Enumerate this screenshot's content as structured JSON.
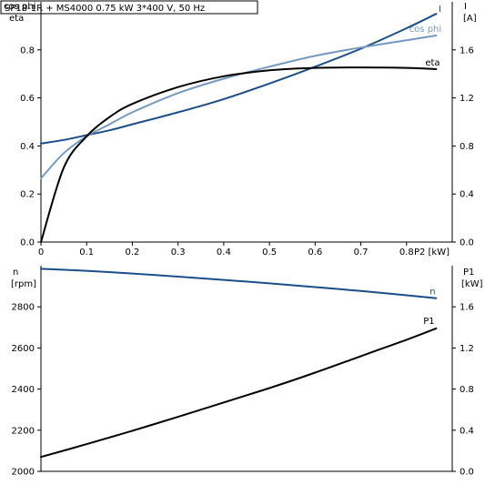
{
  "header": {
    "text": "SP18-1R + MS4000   0.75 kW   3*400 V, 50 Hz"
  },
  "colors": {
    "I": "#1a4f8a",
    "cosphi": "#7699c4",
    "eta": "#000000",
    "n": "#1a4f8a",
    "P1": "#000000",
    "axis": "#000000"
  },
  "chart_data": [
    {
      "type": "line",
      "x": [
        0,
        0.05,
        0.1,
        0.15,
        0.2,
        0.3,
        0.4,
        0.5,
        0.6,
        0.7,
        0.8,
        0.865
      ],
      "xlabel": "P2 [kW]",
      "xlim": [
        0,
        0.9
      ],
      "x_ticks": [
        "0",
        "0.1",
        "0.2",
        "0.3",
        "0.4",
        "0.5",
        "0.6",
        "0.7",
        "0.8"
      ],
      "x_tick_values": [
        0,
        0.1,
        0.2,
        0.3,
        0.4,
        0.5,
        0.6,
        0.7,
        0.8
      ],
      "y_left": {
        "label_lines": [
          "cos phi",
          "eta"
        ],
        "lim": [
          0,
          1
        ],
        "ticks": [
          "0.0",
          "0.2",
          "0.4",
          "0.6",
          "0.8"
        ],
        "tick_values": [
          0,
          0.2,
          0.4,
          0.6,
          0.8
        ]
      },
      "y_right": {
        "label_lines": [
          "I",
          "[A]"
        ],
        "lim": [
          0,
          2.0
        ],
        "ticks": [
          "0.0",
          "0.4",
          "0.8",
          "1.2",
          "1.6"
        ],
        "tick_values": [
          0,
          0.4,
          0.8,
          1.2,
          1.6
        ]
      },
      "series": [
        {
          "name": "I",
          "axis": "right",
          "values": [
            0.82,
            0.85,
            0.89,
            0.93,
            0.98,
            1.08,
            1.19,
            1.32,
            1.46,
            1.61,
            1.78,
            1.9
          ]
        },
        {
          "name": "cos phi",
          "axis": "left",
          "values": [
            0.265,
            0.37,
            0.44,
            0.49,
            0.54,
            0.62,
            0.68,
            0.73,
            0.775,
            0.81,
            0.84,
            0.86
          ]
        },
        {
          "name": "eta",
          "axis": "left",
          "values": [
            0,
            0.31,
            0.44,
            0.52,
            0.575,
            0.645,
            0.69,
            0.715,
            0.725,
            0.727,
            0.725,
            0.72
          ]
        }
      ]
    },
    {
      "type": "line",
      "x": [
        0,
        0.1,
        0.2,
        0.3,
        0.4,
        0.5,
        0.6,
        0.7,
        0.8,
        0.865
      ],
      "xlim": [
        0,
        0.9
      ],
      "y_left": {
        "label_lines": [
          "n",
          "[rpm]"
        ],
        "lim": [
          2000,
          3000
        ],
        "ticks": [
          "2000",
          "2200",
          "2400",
          "2600",
          "2800"
        ],
        "tick_values": [
          2000,
          2200,
          2400,
          2600,
          2800
        ]
      },
      "y_right": {
        "label_lines": [
          "P1",
          "[kW]"
        ],
        "lim": [
          0,
          2.0
        ],
        "ticks": [
          "0.0",
          "0.4",
          "0.8",
          "1.2",
          "1.6"
        ],
        "tick_values": [
          0,
          0.4,
          0.8,
          1.2,
          1.6
        ]
      },
      "series": [
        {
          "name": "n",
          "axis": "left",
          "values": [
            2985,
            2975,
            2962,
            2947,
            2931,
            2914,
            2896,
            2877,
            2856,
            2842
          ]
        },
        {
          "name": "P1",
          "axis": "right",
          "values": [
            0.14,
            0.265,
            0.395,
            0.53,
            0.67,
            0.81,
            0.96,
            1.12,
            1.28,
            1.39
          ]
        }
      ]
    }
  ]
}
